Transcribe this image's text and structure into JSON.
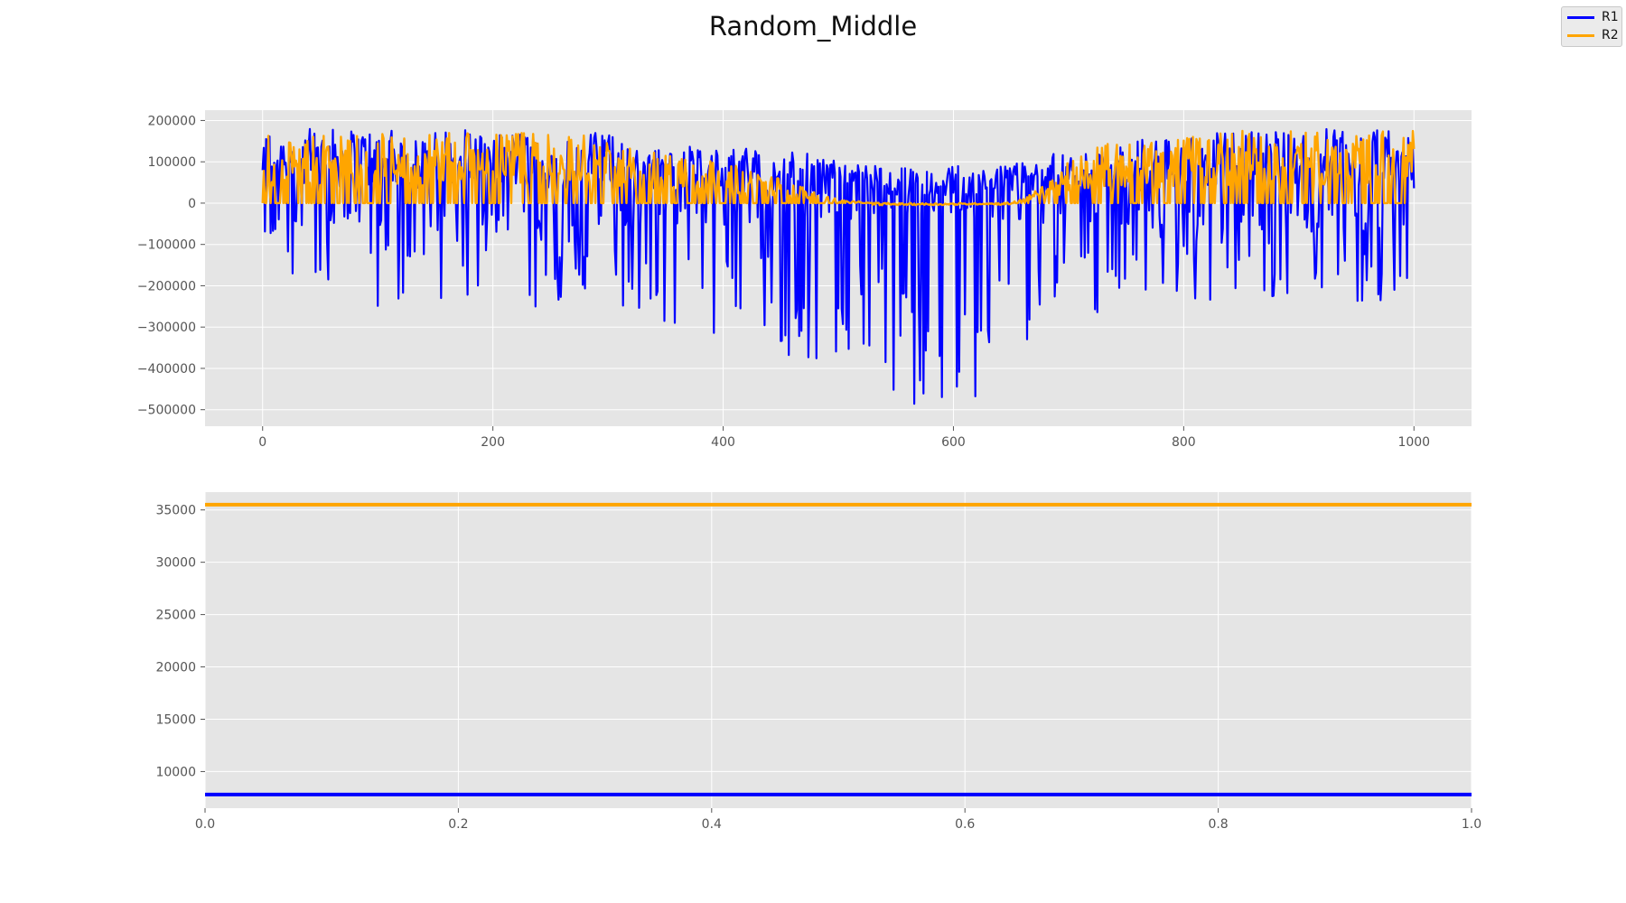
{
  "figure": {
    "title": "Random_Middle"
  },
  "legend": {
    "entries": [
      {
        "name": "R1",
        "color": "#0000ff"
      },
      {
        "name": "R2",
        "color": "#ffa500"
      }
    ],
    "placement": "top-right"
  },
  "colors": {
    "plot_background": "#e5e5e5",
    "grid": "#ffffff",
    "R1": "#0000ff",
    "R2": "#ffa500"
  },
  "chart_data": [
    {
      "type": "line",
      "title": "",
      "xlabel": "",
      "ylabel": "",
      "xlim": [
        -50,
        1050
      ],
      "ylim": [
        -540000,
        225000
      ],
      "grid": true,
      "xticks": [
        0,
        200,
        400,
        600,
        800,
        1000
      ],
      "xtick_labels": [
        "0",
        "200",
        "400",
        "600",
        "800",
        "1000"
      ],
      "yticks": [
        200000,
        100000,
        0,
        -100000,
        -200000,
        -300000,
        -400000,
        -500000
      ],
      "ytick_labels": [
        "200000",
        "100000",
        "0",
        "−100000",
        "−200000",
        "−300000",
        "−400000",
        "−500000"
      ],
      "series": [
        {
          "name": "R1",
          "color": "#0000ff",
          "x": [
            0,
            25,
            50,
            75,
            100,
            125,
            150,
            175,
            200,
            225,
            250,
            275,
            300,
            325,
            350,
            375,
            400,
            425,
            450,
            475,
            500,
            525,
            550,
            575,
            600,
            625,
            650,
            675,
            700,
            725,
            750,
            775,
            800,
            825,
            850,
            875,
            900,
            925,
            950,
            975,
            1000
          ],
          "max": [
            180000,
            180000,
            180000,
            180000,
            180000,
            175000,
            175000,
            180000,
            175000,
            175000,
            170000,
            170000,
            175000,
            150000,
            145000,
            140000,
            135000,
            135000,
            130000,
            120000,
            110000,
            95000,
            90000,
            80000,
            90000,
            100000,
            100000,
            120000,
            120000,
            140000,
            155000,
            155000,
            160000,
            170000,
            175000,
            175000,
            180000,
            185000,
            180000,
            180000,
            170000
          ],
          "min": [
            -60000,
            -240000,
            -230000,
            -185000,
            -250000,
            -240000,
            -255000,
            -260000,
            -250000,
            -260000,
            -250000,
            -240000,
            -230000,
            -300000,
            -300000,
            -310000,
            -360000,
            -350000,
            -370000,
            -420000,
            -470000,
            -400000,
            -500000,
            -480000,
            -510000,
            -460000,
            -460000,
            -280000,
            -220000,
            -290000,
            -260000,
            -220000,
            -230000,
            -240000,
            -200000,
            -240000,
            -240000,
            -260000,
            -250000,
            -240000,
            -210000
          ]
        },
        {
          "name": "R2",
          "color": "#ffa500",
          "x": [
            0,
            25,
            50,
            75,
            100,
            125,
            150,
            175,
            200,
            225,
            250,
            275,
            300,
            325,
            350,
            375,
            400,
            425,
            450,
            475,
            500,
            525,
            550,
            575,
            600,
            625,
            650,
            675,
            700,
            725,
            750,
            775,
            800,
            825,
            850,
            875,
            900,
            925,
            950,
            975,
            1000
          ],
          "max": [
            170000,
            170000,
            170000,
            170000,
            170000,
            170000,
            170000,
            170000,
            170000,
            170000,
            165000,
            165000,
            160000,
            130000,
            130000,
            120000,
            100000,
            80000,
            60000,
            35000,
            10000,
            2000,
            0,
            0,
            0,
            0,
            2000,
            35000,
            100000,
            150000,
            150000,
            150000,
            160000,
            175000,
            175000,
            175000,
            175000,
            175000,
            175000,
            175000,
            175000
          ],
          "min": [
            0,
            0,
            0,
            0,
            0,
            0,
            0,
            0,
            0,
            0,
            0,
            0,
            0,
            0,
            0,
            0,
            0,
            0,
            0,
            0,
            -5000,
            -5000,
            -5000,
            -5000,
            -5000,
            -3000,
            -5000,
            0,
            0,
            0,
            0,
            0,
            0,
            0,
            0,
            0,
            0,
            0,
            0,
            0,
            0
          ]
        }
      ]
    },
    {
      "type": "line",
      "title": "",
      "xlabel": "",
      "ylabel": "",
      "xlim": [
        0,
        1
      ],
      "ylim": [
        6500,
        36700
      ],
      "grid": true,
      "xticks": [
        0.0,
        0.2,
        0.4,
        0.6,
        0.8,
        1.0
      ],
      "xtick_labels": [
        "0.0",
        "0.2",
        "0.4",
        "0.6",
        "0.8",
        "1.0"
      ],
      "yticks": [
        35000,
        30000,
        25000,
        20000,
        15000,
        10000
      ],
      "ytick_labels": [
        "35000",
        "30000",
        "25000",
        "20000",
        "15000",
        "10000"
      ],
      "series": [
        {
          "name": "R1",
          "color": "#0000ff",
          "x": [
            0,
            1
          ],
          "y": [
            7800,
            7800
          ]
        },
        {
          "name": "R2",
          "color": "#ffa500",
          "x": [
            0,
            1
          ],
          "y": [
            35500,
            35500
          ]
        }
      ]
    }
  ]
}
